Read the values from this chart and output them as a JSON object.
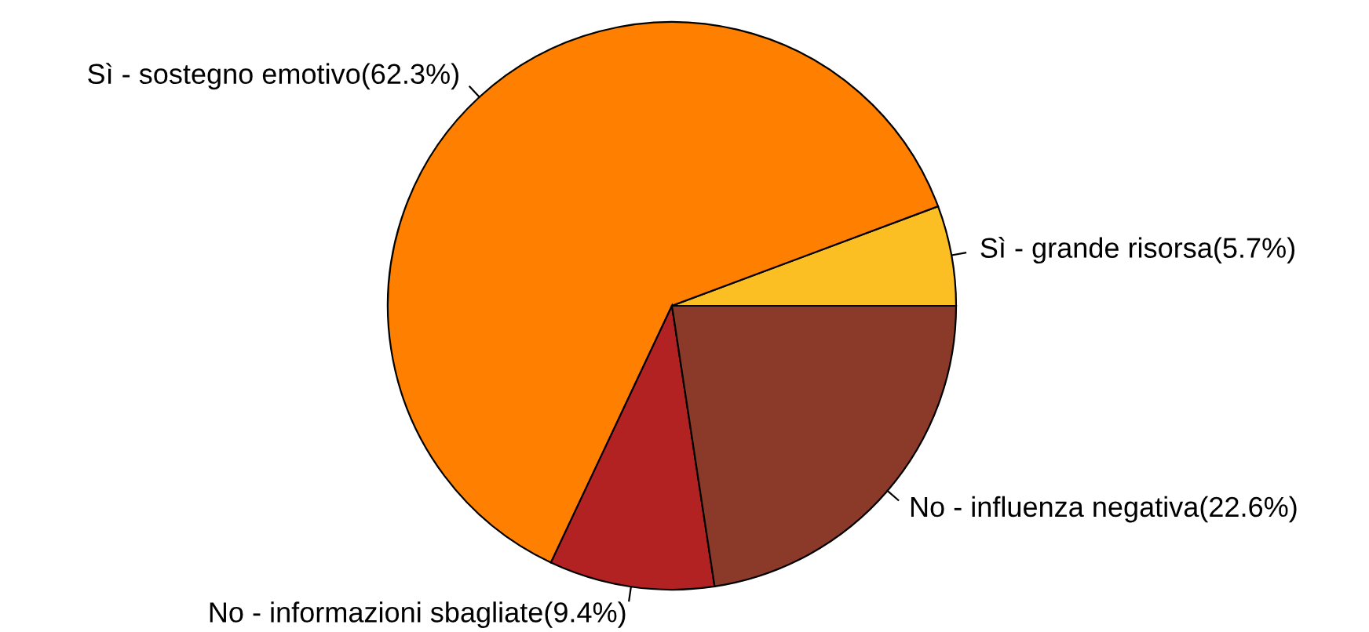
{
  "chart_data": {
    "type": "pie",
    "categories": [
      "Sì - grande risorsa(5.7%)",
      "Sì - sostegno emotivo(62.3%)",
      "No - informazioni sbagliate(9.4%)",
      "No - influenza negativa(22.6%)"
    ],
    "values": [
      5.7,
      62.3,
      9.4,
      22.6
    ],
    "colors": [
      "#fbbf24",
      "#ff8000",
      "#b22222",
      "#8b3a2a"
    ]
  }
}
